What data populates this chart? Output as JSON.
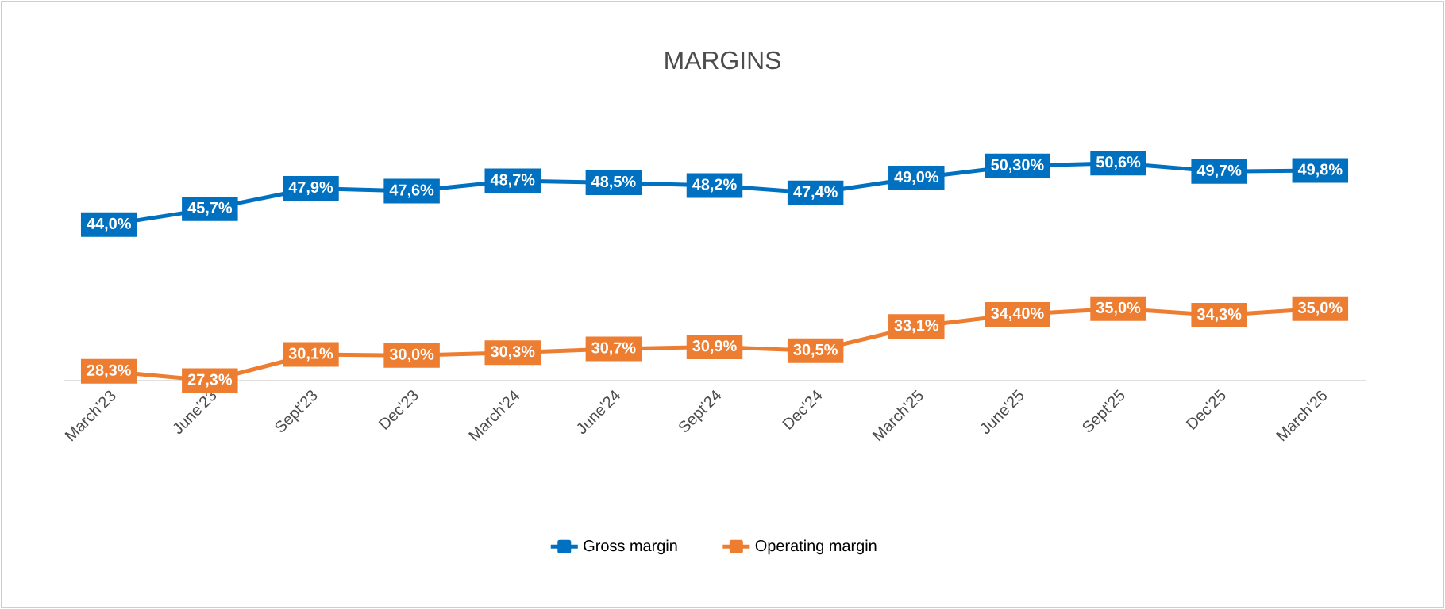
{
  "chart_data": {
    "type": "line",
    "title": "MARGINS",
    "categories": [
      "March'23",
      "June'23",
      "Sept'23",
      "Dec'23",
      "March'24",
      "June'24",
      "Sept'24",
      "Dec'24",
      "March'25",
      "June'25",
      "Sept'25",
      "Dec'25",
      "March'26"
    ],
    "series": [
      {
        "name": "Gross margin",
        "color": "#0070c0",
        "values": [
          44.0,
          45.7,
          47.9,
          47.6,
          48.7,
          48.5,
          48.2,
          47.4,
          49.0,
          50.3,
          50.6,
          49.7,
          49.8
        ],
        "value_labels": [
          "44,0%",
          "45,7%",
          "47,9%",
          "47,6%",
          "48,7%",
          "48,5%",
          "48,2%",
          "47,4%",
          "49,0%",
          "50,30%",
          "50,6%",
          "49,7%",
          "49,8%"
        ]
      },
      {
        "name": "Operating margin",
        "color": "#ed7d31",
        "values": [
          28.3,
          27.3,
          30.1,
          30.0,
          30.3,
          30.7,
          30.9,
          30.5,
          33.1,
          34.4,
          35.0,
          34.3,
          35.0
        ],
        "value_labels": [
          "28,3%",
          "27,3%",
          "30,1%",
          "30,0%",
          "30,3%",
          "30,7%",
          "30,9%",
          "30,5%",
          "33,1%",
          "34,40%",
          "35,0%",
          "34,3%",
          "35,0%"
        ]
      }
    ],
    "legend": "bottom",
    "line_style": "solid",
    "marker": "square"
  }
}
